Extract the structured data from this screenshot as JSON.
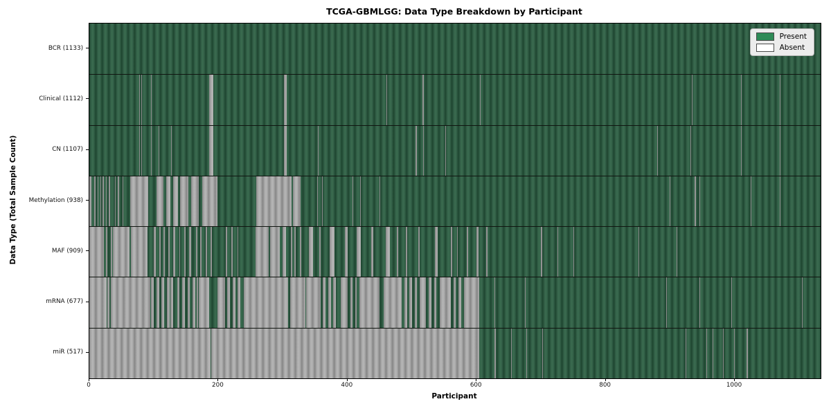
{
  "chart_data": {
    "type": "heatmap",
    "title": "TCGA-GBMLGG: Data Type Breakdown by Participant",
    "xlabel": "Participant",
    "ylabel": "Data Type (Total Sample Count)",
    "x_ticks": [
      0,
      200,
      400,
      600,
      800,
      1000
    ],
    "n_participants": 1133,
    "grid": false,
    "legend_position": "upper right",
    "legend": [
      {
        "label": "Present",
        "color": "#2e8b57"
      },
      {
        "label": "Absent",
        "color": "#ffffff"
      }
    ],
    "colors": {
      "present_fill": "#2e5c41",
      "absent_fill": "#a6a6a6",
      "bar_edge": "#1e4530"
    },
    "rows": [
      {
        "name": "BCR",
        "label": "BCR (1133)",
        "total": 1133,
        "absent_runs": []
      },
      {
        "name": "Clinical",
        "label": "Clinical (1112)",
        "total": 1112,
        "absent_runs": [
          [
            77,
            78
          ],
          [
            81,
            82
          ],
          [
            96,
            97
          ],
          [
            186,
            192
          ],
          [
            301,
            306
          ],
          [
            460,
            461
          ],
          [
            516,
            518
          ],
          [
            605,
            606
          ],
          [
            933,
            934
          ],
          [
            1010,
            1011
          ],
          [
            1070,
            1071
          ]
        ]
      },
      {
        "name": "CN",
        "label": "CN (1107)",
        "total": 1107,
        "absent_runs": [
          [
            77,
            78
          ],
          [
            81,
            82
          ],
          [
            96,
            97
          ],
          [
            107,
            108
          ],
          [
            127,
            128
          ],
          [
            186,
            192
          ],
          [
            301,
            306
          ],
          [
            354,
            355
          ],
          [
            505,
            507
          ],
          [
            517,
            518
          ],
          [
            552,
            553
          ],
          [
            640,
            641
          ],
          [
            880,
            881
          ],
          [
            931,
            932
          ],
          [
            1010,
            1011
          ],
          [
            1070,
            1071
          ]
        ]
      },
      {
        "name": "Methylation",
        "label": "Methylation (938)",
        "total": 938,
        "absent_runs": [
          [
            0,
            3
          ],
          [
            8,
            10
          ],
          [
            13,
            14
          ],
          [
            17,
            18
          ],
          [
            20,
            22
          ],
          [
            26,
            27
          ],
          [
            30,
            32
          ],
          [
            36,
            37
          ],
          [
            40,
            41
          ],
          [
            44,
            46
          ],
          [
            52,
            53
          ],
          [
            63,
            91
          ],
          [
            104,
            115
          ],
          [
            119,
            126
          ],
          [
            130,
            137
          ],
          [
            141,
            153
          ],
          [
            158,
            170
          ],
          [
            175,
            198
          ],
          [
            259,
            313
          ],
          [
            315,
            327
          ],
          [
            353,
            354
          ],
          [
            360,
            362
          ],
          [
            408,
            409
          ],
          [
            420,
            421
          ],
          [
            450,
            451
          ],
          [
            899,
            900
          ],
          [
            938,
            940
          ],
          [
            945,
            946
          ],
          [
            1025,
            1026
          ],
          [
            1070,
            1071
          ]
        ]
      },
      {
        "name": "MAF",
        "label": "MAF (909)",
        "total": 909,
        "absent_runs": [
          [
            0,
            22
          ],
          [
            26,
            28
          ],
          [
            33,
            35
          ],
          [
            36,
            62
          ],
          [
            64,
            90
          ],
          [
            100,
            103
          ],
          [
            108,
            110
          ],
          [
            115,
            117
          ],
          [
            122,
            124
          ],
          [
            130,
            133
          ],
          [
            139,
            141
          ],
          [
            147,
            149
          ],
          [
            155,
            158
          ],
          [
            165,
            167
          ],
          [
            172,
            174
          ],
          [
            180,
            182
          ],
          [
            188,
            190
          ],
          [
            211,
            213
          ],
          [
            220,
            222
          ],
          [
            230,
            231
          ],
          [
            257,
            278
          ],
          [
            280,
            295
          ],
          [
            299,
            305
          ],
          [
            312,
            314
          ],
          [
            318,
            320
          ],
          [
            326,
            328
          ],
          [
            340,
            347
          ],
          [
            356,
            358
          ],
          [
            372,
            380
          ],
          [
            396,
            400
          ],
          [
            414,
            421
          ],
          [
            437,
            440
          ],
          [
            459,
            466
          ],
          [
            476,
            478
          ],
          [
            490,
            492
          ],
          [
            510,
            512
          ],
          [
            535,
            540
          ],
          [
            560,
            562
          ],
          [
            570,
            571
          ],
          [
            585,
            587
          ],
          [
            600,
            603
          ],
          [
            615,
            617
          ],
          [
            700,
            702
          ],
          [
            725,
            726
          ],
          [
            750,
            751
          ],
          [
            851,
            852
          ],
          [
            910,
            911
          ],
          [
            1037,
            1038
          ]
        ]
      },
      {
        "name": "mRNA",
        "label": "mRNA (677)",
        "total": 677,
        "absent_runs": [
          [
            0,
            27
          ],
          [
            28,
            31
          ],
          [
            33,
            94
          ],
          [
            96,
            100
          ],
          [
            104,
            108
          ],
          [
            112,
            116
          ],
          [
            120,
            124
          ],
          [
            126,
            130
          ],
          [
            136,
            140
          ],
          [
            144,
            148
          ],
          [
            152,
            156
          ],
          [
            160,
            164
          ],
          [
            166,
            168
          ],
          [
            170,
            186
          ],
          [
            199,
            210
          ],
          [
            214,
            218
          ],
          [
            222,
            226
          ],
          [
            230,
            234
          ],
          [
            239,
            308
          ],
          [
            311,
            335
          ],
          [
            336,
            358
          ],
          [
            362,
            366
          ],
          [
            370,
            374
          ],
          [
            378,
            382
          ],
          [
            389,
            400
          ],
          [
            404,
            408
          ],
          [
            412,
            414
          ],
          [
            418,
            450
          ],
          [
            456,
            484
          ],
          [
            488,
            492
          ],
          [
            496,
            500
          ],
          [
            504,
            508
          ],
          [
            512,
            521
          ],
          [
            526,
            530
          ],
          [
            534,
            538
          ],
          [
            543,
            560
          ],
          [
            564,
            568
          ],
          [
            572,
            576
          ],
          [
            580,
            604
          ],
          [
            628,
            629
          ],
          [
            675,
            676
          ],
          [
            894,
            895
          ],
          [
            945,
            946
          ],
          [
            995,
            996
          ],
          [
            1104,
            1105
          ]
        ]
      },
      {
        "name": "miR",
        "label": "miR (517)",
        "total": 517,
        "absent_runs": [
          [
            0,
            188
          ],
          [
            189,
            604
          ],
          [
            628,
            630
          ],
          [
            653,
            654
          ],
          [
            677,
            678
          ],
          [
            702,
            703
          ],
          [
            924,
            925
          ],
          [
            956,
            957
          ],
          [
            966,
            967
          ],
          [
            982,
            983
          ],
          [
            999,
            1000
          ],
          [
            1018,
            1020
          ],
          [
            1081,
            1082
          ]
        ]
      }
    ]
  }
}
